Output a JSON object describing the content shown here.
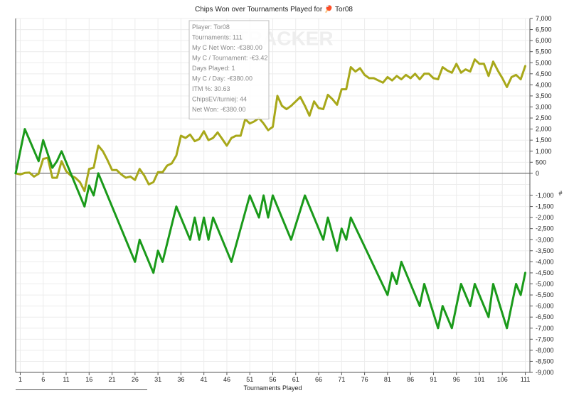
{
  "chart_data": {
    "type": "line",
    "title": "Chips Won over Tournaments Played for 🏓 Tor08",
    "xlabel": "Tournaments Played",
    "ylabel": "#",
    "xlim": [
      0,
      112
    ],
    "ylim": [
      -9000,
      7000
    ],
    "x_ticks": [
      1,
      6,
      11,
      16,
      21,
      26,
      31,
      36,
      41,
      46,
      51,
      56,
      61,
      66,
      71,
      76,
      81,
      86,
      91,
      96,
      101,
      106,
      111
    ],
    "y_ticks": [
      7000,
      6500,
      6000,
      5500,
      5000,
      4500,
      4000,
      3500,
      3000,
      2500,
      2000,
      1500,
      1000,
      500,
      0,
      -1000,
      -1500,
      -2000,
      -2500,
      -3000,
      -3500,
      -4000,
      -4500,
      -5000,
      -5500,
      -6000,
      -6500,
      -7000,
      -7500,
      -8000,
      -8500,
      -9000
    ],
    "y_tick_labels": [
      "7,000",
      "6,500",
      "6,000",
      "5,500",
      "5,000",
      "4,500",
      "4,000",
      "3,500",
      "3,000",
      "2,500",
      "2,000",
      "1,500",
      "1,000",
      "500",
      "0",
      "-1,000",
      "-1,500",
      "-2,000",
      "-2,500",
      "-3,000",
      "-3,500",
      "-4,000",
      "-4,500",
      "-5,000",
      "-5,500",
      "-6,000",
      "-6,500",
      "-7,000",
      "-7,500",
      "-8,000",
      "-8,500",
      "-9,000"
    ],
    "grid": true,
    "series": [
      {
        "color": "#a8a81a",
        "points": [
          [
            0,
            0
          ],
          [
            1,
            -50
          ],
          [
            2,
            20
          ],
          [
            3,
            30
          ],
          [
            4,
            -150
          ],
          [
            5,
            -20
          ],
          [
            6,
            650
          ],
          [
            7,
            700
          ],
          [
            8,
            -200
          ],
          [
            9,
            -200
          ],
          [
            10,
            550
          ],
          [
            11,
            100
          ],
          [
            12,
            -100
          ],
          [
            13,
            -200
          ],
          [
            14,
            -400
          ],
          [
            15,
            -800
          ],
          [
            16,
            200
          ],
          [
            17,
            250
          ],
          [
            18,
            1250
          ],
          [
            19,
            1000
          ],
          [
            20,
            600
          ],
          [
            21,
            150
          ],
          [
            22,
            150
          ],
          [
            23,
            -50
          ],
          [
            24,
            -200
          ],
          [
            25,
            -150
          ],
          [
            26,
            -300
          ],
          [
            27,
            200
          ],
          [
            28,
            -100
          ],
          [
            29,
            -500
          ],
          [
            30,
            -400
          ],
          [
            31,
            50
          ],
          [
            32,
            50
          ],
          [
            33,
            350
          ],
          [
            34,
            450
          ],
          [
            35,
            800
          ],
          [
            36,
            1700
          ],
          [
            37,
            1600
          ],
          [
            38,
            1750
          ],
          [
            39,
            1450
          ],
          [
            40,
            1550
          ],
          [
            41,
            1900
          ],
          [
            42,
            1500
          ],
          [
            43,
            1600
          ],
          [
            44,
            1850
          ],
          [
            45,
            1550
          ],
          [
            46,
            1250
          ],
          [
            47,
            1600
          ],
          [
            48,
            1700
          ],
          [
            49,
            1700
          ],
          [
            50,
            2450
          ],
          [
            51,
            2250
          ],
          [
            52,
            2350
          ],
          [
            53,
            2500
          ],
          [
            54,
            2250
          ],
          [
            55,
            1950
          ],
          [
            56,
            2100
          ],
          [
            57,
            3500
          ],
          [
            58,
            3050
          ],
          [
            59,
            2900
          ],
          [
            60,
            3050
          ],
          [
            61,
            3250
          ],
          [
            62,
            3450
          ],
          [
            63,
            3050
          ],
          [
            64,
            2600
          ],
          [
            65,
            3250
          ],
          [
            66,
            2950
          ],
          [
            67,
            2900
          ],
          [
            68,
            3550
          ],
          [
            69,
            3350
          ],
          [
            70,
            3100
          ],
          [
            71,
            3800
          ],
          [
            72,
            3800
          ],
          [
            73,
            4800
          ],
          [
            74,
            4600
          ],
          [
            75,
            4750
          ],
          [
            76,
            4450
          ],
          [
            77,
            4300
          ],
          [
            78,
            4300
          ],
          [
            79,
            4200
          ],
          [
            80,
            4100
          ],
          [
            81,
            4350
          ],
          [
            82,
            4200
          ],
          [
            83,
            4400
          ],
          [
            84,
            4250
          ],
          [
            85,
            4450
          ],
          [
            86,
            4300
          ],
          [
            87,
            4500
          ],
          [
            88,
            4250
          ],
          [
            89,
            4500
          ],
          [
            90,
            4500
          ],
          [
            91,
            4300
          ],
          [
            92,
            4250
          ],
          [
            93,
            4800
          ],
          [
            94,
            4650
          ],
          [
            95,
            4550
          ],
          [
            96,
            4950
          ],
          [
            97,
            4550
          ],
          [
            98,
            4700
          ],
          [
            99,
            4600
          ],
          [
            100,
            5150
          ],
          [
            101,
            4950
          ],
          [
            102,
            4950
          ],
          [
            103,
            4400
          ],
          [
            104,
            5050
          ],
          [
            105,
            4650
          ],
          [
            106,
            4300
          ],
          [
            107,
            3900
          ],
          [
            108,
            4350
          ],
          [
            109,
            4450
          ],
          [
            110,
            4250
          ],
          [
            111,
            4850
          ]
        ]
      },
      {
        "color": "#1a9a1a",
        "points": [
          [
            0,
            0
          ],
          [
            2,
            2000
          ],
          [
            5,
            550
          ],
          [
            6,
            1500
          ],
          [
            8,
            250
          ],
          [
            9,
            550
          ],
          [
            10,
            1000
          ],
          [
            15,
            -1500
          ],
          [
            16,
            -550
          ],
          [
            17,
            -1000
          ],
          [
            18,
            0
          ],
          [
            26,
            -4000
          ],
          [
            27,
            -3000
          ],
          [
            30,
            -4500
          ],
          [
            31,
            -3500
          ],
          [
            32,
            -4000
          ],
          [
            35,
            -1500
          ],
          [
            38,
            -3000
          ],
          [
            39,
            -2000
          ],
          [
            40,
            -3000
          ],
          [
            41,
            -2000
          ],
          [
            42,
            -3000
          ],
          [
            43,
            -2000
          ],
          [
            47,
            -4000
          ],
          [
            51,
            -1000
          ],
          [
            53,
            -2000
          ],
          [
            54,
            -1000
          ],
          [
            55,
            -2000
          ],
          [
            56,
            -1000
          ],
          [
            60,
            -3000
          ],
          [
            63,
            -1000
          ],
          [
            67,
            -3000
          ],
          [
            68,
            -2000
          ],
          [
            70,
            -3500
          ],
          [
            71,
            -2500
          ],
          [
            72,
            -3000
          ],
          [
            73,
            -2000
          ],
          [
            81,
            -5500
          ],
          [
            82,
            -4500
          ],
          [
            83,
            -5000
          ],
          [
            84,
            -4000
          ],
          [
            88,
            -6000
          ],
          [
            89,
            -5000
          ],
          [
            92,
            -7000
          ],
          [
            93,
            -6000
          ],
          [
            95,
            -7000
          ],
          [
            96,
            -6000
          ],
          [
            97,
            -5000
          ],
          [
            99,
            -6000
          ],
          [
            100,
            -5000
          ],
          [
            103,
            -6500
          ],
          [
            104,
            -5000
          ],
          [
            107,
            -7000
          ],
          [
            109,
            -5000
          ],
          [
            110,
            -5500
          ],
          [
            111,
            -4500
          ]
        ]
      }
    ],
    "watermark": "KERTRACKER",
    "tooltip": [
      "Player: Tor08",
      "Tournaments: 111",
      "My C Net Won: -€380.00",
      "My C / Tournament: -€3.42",
      "Days Played: 1",
      "My C / Day: -€380.00",
      "ITM %: 30.63",
      "ChipsEV/turniej: 44",
      "Net Won: -€380.00"
    ]
  }
}
